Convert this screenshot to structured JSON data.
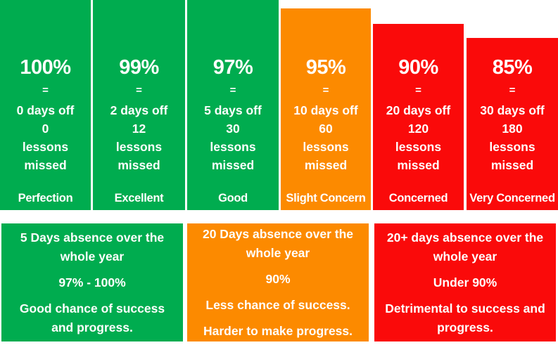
{
  "palette": {
    "green": "#00AC4F",
    "orange": "#FC8A00",
    "red": "#FA0A0A",
    "text": "#FFFFFF",
    "background": "#FFFFFF"
  },
  "columns": [
    {
      "percent": "100%",
      "equals_sign": "=",
      "days_off": "0 days off",
      "lessons_count": "0",
      "lessons_word": "lessons",
      "missed_word": "missed",
      "status_label": "Perfection",
      "color": "green"
    },
    {
      "percent": "99%",
      "equals_sign": "=",
      "days_off": "2 days off",
      "lessons_count": "12",
      "lessons_word": "lessons",
      "missed_word": "missed",
      "status_label": "Excellent",
      "color": "green"
    },
    {
      "percent": "97%",
      "equals_sign": "=",
      "days_off": "5 days off",
      "lessons_count": "30",
      "lessons_word": "lessons",
      "missed_word": "missed",
      "status_label": "Good",
      "color": "green"
    },
    {
      "percent": "95%",
      "equals_sign": "=",
      "days_off": "10 days off",
      "lessons_count": "60",
      "lessons_word": "lessons",
      "missed_word": "missed",
      "status_label": "Slight Concern",
      "color": "orange"
    },
    {
      "percent": "90%",
      "equals_sign": "=",
      "days_off": "20 days off",
      "lessons_count": "120",
      "lessons_word": "lessons",
      "missed_word": "missed",
      "status_label": "Concerned",
      "color": "red"
    },
    {
      "percent": "85%",
      "equals_sign": "=",
      "days_off": "30 days off",
      "lessons_count": "180",
      "lessons_word": "lessons",
      "missed_word": "missed",
      "status_label": "Very Concerned",
      "color": "red"
    }
  ],
  "summary_boxes": [
    {
      "color": "green",
      "paragraphs": [
        "5 Days absence over the whole year",
        "97% - 100%",
        "Good chance of success and progress."
      ]
    },
    {
      "color": "orange",
      "paragraphs": [
        "20 Days absence over the whole year",
        "90%",
        "Less chance of success.",
        "Harder to make progress."
      ]
    },
    {
      "color": "red",
      "paragraphs": [
        "20+ days absence over the whole year",
        "Under 90%",
        "Detrimental to success and progress."
      ]
    }
  ],
  "chart_data": {
    "type": "bar",
    "categories": [
      "100%",
      "99%",
      "97%",
      "95%",
      "90%",
      "85%"
    ],
    "series": [
      {
        "name": "days off",
        "values": [
          0,
          2,
          5,
          10,
          20,
          30
        ]
      },
      {
        "name": "lessons missed",
        "values": [
          0,
          12,
          30,
          60,
          120,
          180
        ]
      }
    ],
    "bar_labels": [
      "Perfection",
      "Excellent",
      "Good",
      "Slight Concern",
      "Concerned",
      "Very Concerned"
    ],
    "bar_colors": [
      "#00AC4F",
      "#00AC4F",
      "#00AC4F",
      "#FC8A00",
      "#FA0A0A",
      "#FA0A0A"
    ],
    "title": "",
    "xlabel": "",
    "ylabel": "",
    "notes": "Bar heights represent attendance percentage descending from 100% to 85%"
  }
}
